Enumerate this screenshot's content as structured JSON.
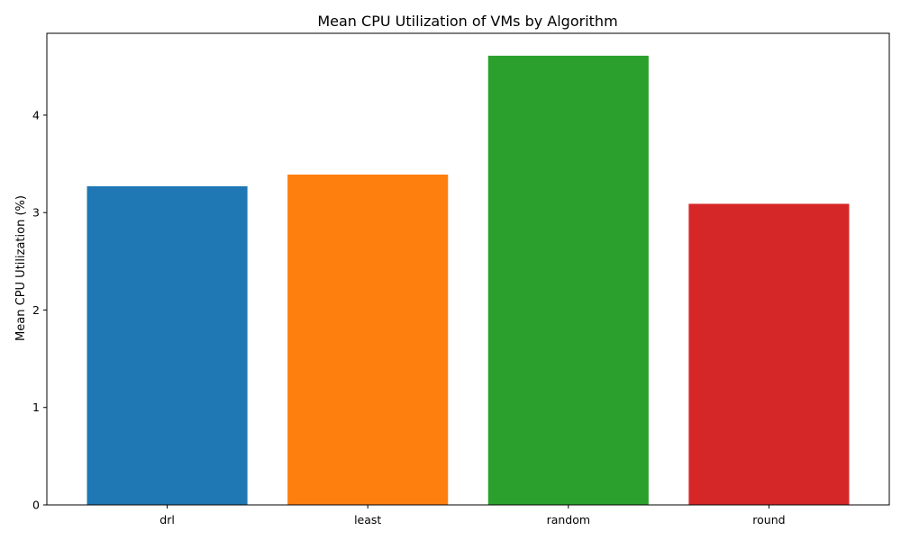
{
  "chart_data": {
    "type": "bar",
    "title": "Mean CPU Utilization of VMs by Algorithm",
    "xlabel": "",
    "ylabel": "Mean CPU Utilization (%)",
    "categories": [
      "drl",
      "least",
      "random",
      "round"
    ],
    "values": [
      3.27,
      3.39,
      4.61,
      3.09
    ],
    "colors": [
      "#1f77b4",
      "#ff7f0e",
      "#2ca02c",
      "#d62728"
    ],
    "ylim": [
      0,
      4.84
    ],
    "yticks": [
      0,
      1,
      2,
      3,
      4
    ],
    "grid": false,
    "legend": "none"
  }
}
